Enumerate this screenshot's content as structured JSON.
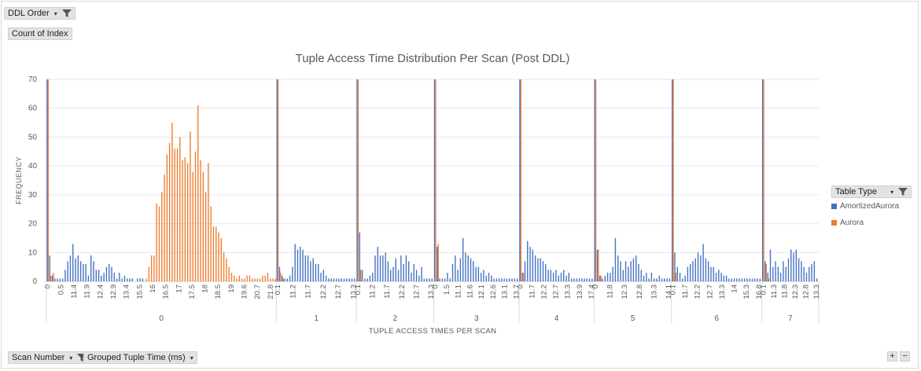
{
  "buttons": {
    "ddl_order": "DDL Order",
    "count_of_index": "Count of Index",
    "scan_number": "Scan Number",
    "grouped_tuple_time": "Grouped Tuple Time (ms)",
    "table_type": "Table Type"
  },
  "zoom": {
    "plus": "+",
    "minus": "−"
  },
  "colors": {
    "amortized": "#4472c4",
    "aurora": "#ed7d31"
  },
  "chart_data": {
    "type": "bar",
    "title": "Tuple Access Time Distribution Per Scan (Post DDL)",
    "ylabel": "FREQUENCY",
    "xlabel": "TUPLE ACCESS TIMES PER SCAN",
    "ylim": [
      0,
      70
    ],
    "yticks": [
      0,
      10,
      20,
      30,
      40,
      50,
      60,
      70
    ],
    "legend": {
      "title": "Table Type",
      "position": "right",
      "entries": [
        "AmortizedAurora",
        "Aurora"
      ]
    },
    "groups": [
      {
        "label": "0",
        "tick_labels": [
          "0",
          "0.5",
          "11.4",
          "11.9",
          "12.4",
          "12.9",
          "13.4",
          "15.5",
          "16",
          "16.5",
          "17",
          "17.5",
          "18",
          "18.5",
          "19",
          "19.6",
          "20.7",
          "21.8"
        ],
        "amortized": [
          70,
          9,
          2,
          1,
          1,
          1,
          1,
          4,
          7,
          9,
          13,
          8,
          9,
          7,
          6,
          6,
          2,
          9,
          7,
          4,
          4,
          2,
          3,
          5,
          6,
          5,
          3,
          1,
          3,
          1,
          2,
          1,
          1,
          1,
          0,
          1,
          1,
          1,
          0,
          0,
          0,
          0,
          0,
          0,
          0,
          0,
          0,
          0,
          0,
          0,
          0,
          0,
          0,
          0,
          0,
          0,
          0,
          0,
          0,
          0,
          0,
          0,
          0,
          0,
          0,
          0,
          0,
          0,
          0,
          0,
          0,
          0,
          0,
          0,
          0,
          0,
          0,
          0,
          0,
          0,
          0,
          0,
          0,
          0,
          0,
          0,
          0,
          0,
          0
        ],
        "aurora": [
          70,
          2,
          3,
          0,
          0,
          0,
          0,
          0,
          0,
          0,
          0,
          0,
          0,
          0,
          0,
          0,
          0,
          0,
          0,
          0,
          0,
          0,
          0,
          0,
          0,
          0,
          0,
          0,
          0,
          0,
          0,
          0,
          0,
          0,
          0,
          0,
          0,
          0,
          1,
          5,
          9,
          9,
          27,
          26,
          31,
          37,
          44,
          48,
          55,
          46,
          46,
          50,
          42,
          43,
          41,
          52,
          38,
          45,
          61,
          42,
          38,
          31,
          41,
          26,
          19,
          19,
          17,
          15,
          10,
          8,
          5,
          3,
          2,
          1,
          2,
          1,
          1,
          2,
          2,
          1,
          1,
          1,
          1,
          2,
          2,
          3,
          1,
          1,
          1,
          1
        ]
      },
      {
        "label": "1",
        "tick_labels": [
          "0.1",
          "11.2",
          "11.7",
          "12.2",
          "12.7",
          "13.3"
        ],
        "amortized": [
          70,
          5,
          2,
          1,
          1,
          2,
          5,
          13,
          11,
          12,
          11,
          9,
          9,
          7,
          8,
          6,
          6,
          3,
          4,
          2,
          1,
          1,
          1,
          1,
          1,
          1,
          1,
          1,
          1,
          1,
          1
        ],
        "aurora": [
          70,
          3,
          1,
          0,
          0,
          0,
          0,
          0,
          0,
          0,
          0,
          0,
          0,
          0,
          0,
          0,
          0,
          0,
          0,
          0,
          0,
          0,
          0,
          0,
          0,
          0,
          0,
          0,
          0,
          0,
          0
        ]
      },
      {
        "label": "2",
        "tick_labels": [
          "0.1",
          "11.2",
          "11.7",
          "12.2",
          "12.7",
          "13.3"
        ],
        "amortized": [
          70,
          17,
          4,
          1,
          1,
          2,
          3,
          9,
          12,
          9,
          9,
          10,
          7,
          4,
          5,
          8,
          4,
          9,
          6,
          9,
          7,
          3,
          6,
          4,
          2,
          5,
          1,
          1,
          1,
          1
        ],
        "aurora": [
          70,
          4,
          0,
          0,
          0,
          0,
          0,
          0,
          0,
          0,
          0,
          0,
          0,
          0,
          0,
          0,
          0,
          0,
          0,
          0,
          0,
          0,
          0,
          0,
          0,
          0,
          0,
          0,
          0,
          0
        ]
      },
      {
        "label": "3",
        "tick_labels": [
          "0",
          "1.5",
          "11.1",
          "11.6",
          "12.1",
          "12.6",
          "13.1",
          "13.7"
        ],
        "amortized": [
          70,
          12,
          1,
          1,
          1,
          3,
          1,
          6,
          9,
          4,
          8,
          15,
          10,
          9,
          8,
          7,
          5,
          5,
          3,
          4,
          2,
          3,
          2,
          1,
          1,
          1,
          1,
          1,
          1,
          1,
          1,
          1,
          1
        ],
        "aurora": [
          70,
          13,
          0,
          0,
          0,
          0,
          0,
          0,
          0,
          0,
          0,
          0,
          0,
          0,
          0,
          0,
          0,
          0,
          0,
          0,
          0,
          0,
          0,
          0,
          0,
          0,
          0,
          0,
          0,
          0,
          0,
          0,
          0
        ]
      },
      {
        "label": "4",
        "tick_labels": [
          "0",
          "11.7",
          "12.2",
          "12.7",
          "13.3",
          "13.9",
          "17.4"
        ],
        "amortized": [
          70,
          3,
          7,
          14,
          12,
          11,
          9,
          8,
          8,
          7,
          6,
          4,
          4,
          3,
          4,
          2,
          3,
          4,
          2,
          3,
          1,
          1,
          1,
          1,
          1,
          1,
          1,
          1,
          1
        ],
        "aurora": [
          70,
          3,
          0,
          0,
          0,
          0,
          0,
          0,
          0,
          0,
          0,
          0,
          0,
          0,
          0,
          0,
          0,
          0,
          0,
          0,
          0,
          0,
          0,
          0,
          0,
          0,
          0,
          0,
          0
        ]
      },
      {
        "label": "5",
        "tick_labels": [
          "0",
          "11.8",
          "12.3",
          "12.8",
          "13.3",
          "14.1"
        ],
        "amortized": [
          70,
          11,
          2,
          1,
          2,
          3,
          3,
          5,
          15,
          9,
          7,
          4,
          7,
          5,
          7,
          8,
          9,
          6,
          4,
          2,
          3,
          1,
          3,
          1,
          1,
          2,
          1,
          1,
          1,
          1
        ],
        "aurora": [
          70,
          11,
          2,
          0,
          0,
          0,
          0,
          0,
          0,
          0,
          0,
          0,
          0,
          0,
          0,
          0,
          0,
          0,
          0,
          0,
          0,
          0,
          0,
          0,
          0,
          0,
          0,
          0,
          0,
          0
        ]
      },
      {
        "label": "6",
        "tick_labels": [
          "0.1",
          "11.7",
          "12.2",
          "12.7",
          "13.3",
          "14",
          "15.3",
          "16.8"
        ],
        "amortized": [
          70,
          10,
          5,
          3,
          1,
          2,
          5,
          6,
          7,
          8,
          10,
          9,
          13,
          8,
          7,
          5,
          5,
          3,
          4,
          3,
          2,
          2,
          1,
          1,
          1,
          1,
          1,
          1,
          1,
          1,
          1,
          1,
          1,
          1,
          1
        ],
        "aurora": [
          70,
          3,
          0,
          0,
          0,
          0,
          0,
          0,
          0,
          0,
          0,
          0,
          0,
          0,
          0,
          0,
          0,
          0,
          0,
          0,
          0,
          0,
          0,
          0,
          0,
          0,
          0,
          0,
          0,
          0,
          0,
          0,
          0,
          0,
          0
        ]
      },
      {
        "label": "7",
        "tick_labels": [
          "0.1",
          "11.3",
          "11.8",
          "12.3",
          "12.8",
          "13.3"
        ],
        "amortized": [
          70,
          7,
          3,
          11,
          5,
          7,
          5,
          3,
          7,
          5,
          8,
          11,
          10,
          11,
          8,
          7,
          5,
          3,
          5,
          6,
          7,
          1
        ],
        "aurora": [
          70,
          6,
          1,
          0,
          0,
          0,
          0,
          0,
          0,
          0,
          0,
          0,
          0,
          0,
          0,
          0,
          0,
          0,
          0,
          0,
          0,
          0
        ]
      }
    ]
  }
}
